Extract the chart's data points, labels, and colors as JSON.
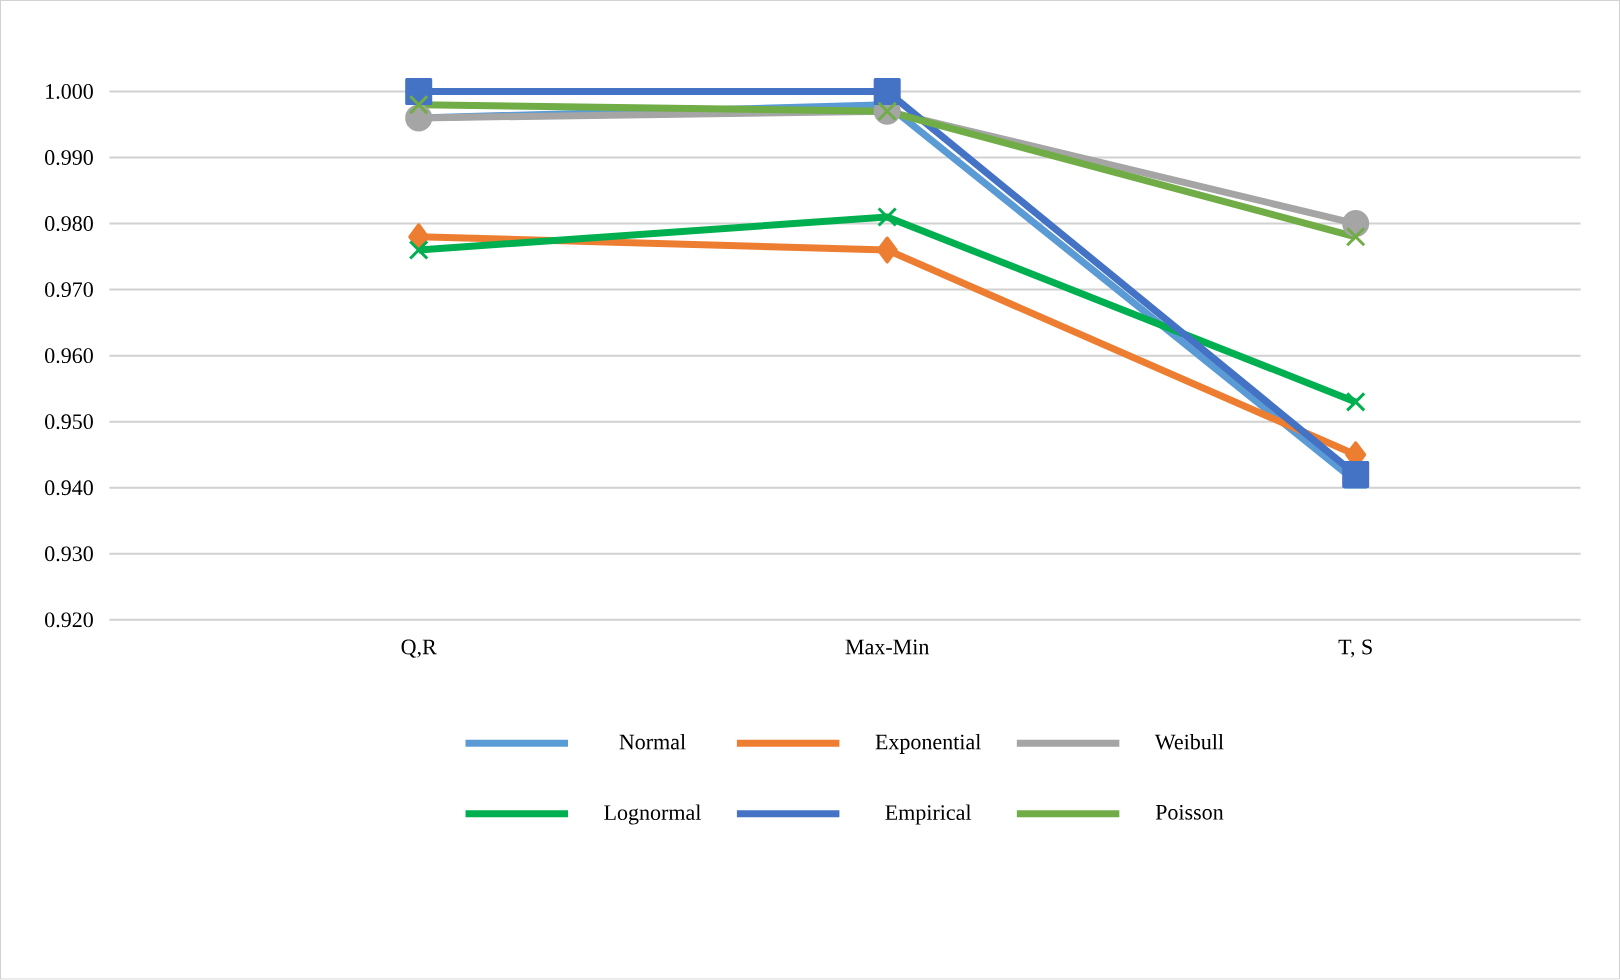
{
  "chart_data": {
    "type": "line",
    "categories": [
      "Q,R",
      "Max-Min",
      "T, S"
    ],
    "series": [
      {
        "name": "Normal",
        "color": "#5b9bd5",
        "marker": "triangle",
        "values": [
          0.996,
          0.998,
          0.941
        ]
      },
      {
        "name": "Exponential",
        "color": "#ed7d31",
        "marker": "diamond",
        "values": [
          0.978,
          0.976,
          0.945
        ]
      },
      {
        "name": "Weibull",
        "color": "#a5a5a5",
        "marker": "circle",
        "values": [
          0.996,
          0.997,
          0.98
        ]
      },
      {
        "name": "Lognormal",
        "color": "#00b050",
        "marker": "cross",
        "values": [
          0.976,
          0.981,
          0.953
        ]
      },
      {
        "name": "Empirical",
        "color": "#4472c4",
        "marker": "square",
        "values": [
          1.0,
          1.0,
          0.942
        ]
      },
      {
        "name": "Poisson",
        "color": "#70ad47",
        "marker": "cross",
        "values": [
          0.998,
          0.997,
          0.978
        ]
      }
    ],
    "ylim": [
      0.92,
      1.0
    ],
    "yticks": [
      {
        "value": 0.92,
        "label": "0.920"
      },
      {
        "value": 0.93,
        "label": "0.930"
      },
      {
        "value": 0.94,
        "label": "0.940"
      },
      {
        "value": 0.95,
        "label": "0.950"
      },
      {
        "value": 0.96,
        "label": "0.960"
      },
      {
        "value": 0.97,
        "label": "0.970"
      },
      {
        "value": 0.98,
        "label": "0.980"
      },
      {
        "value": 0.99,
        "label": "0.990"
      },
      {
        "value": 1.0,
        "label": "1.000"
      }
    ],
    "grid": "y",
    "legend": "bottom",
    "line_style": "solid"
  }
}
